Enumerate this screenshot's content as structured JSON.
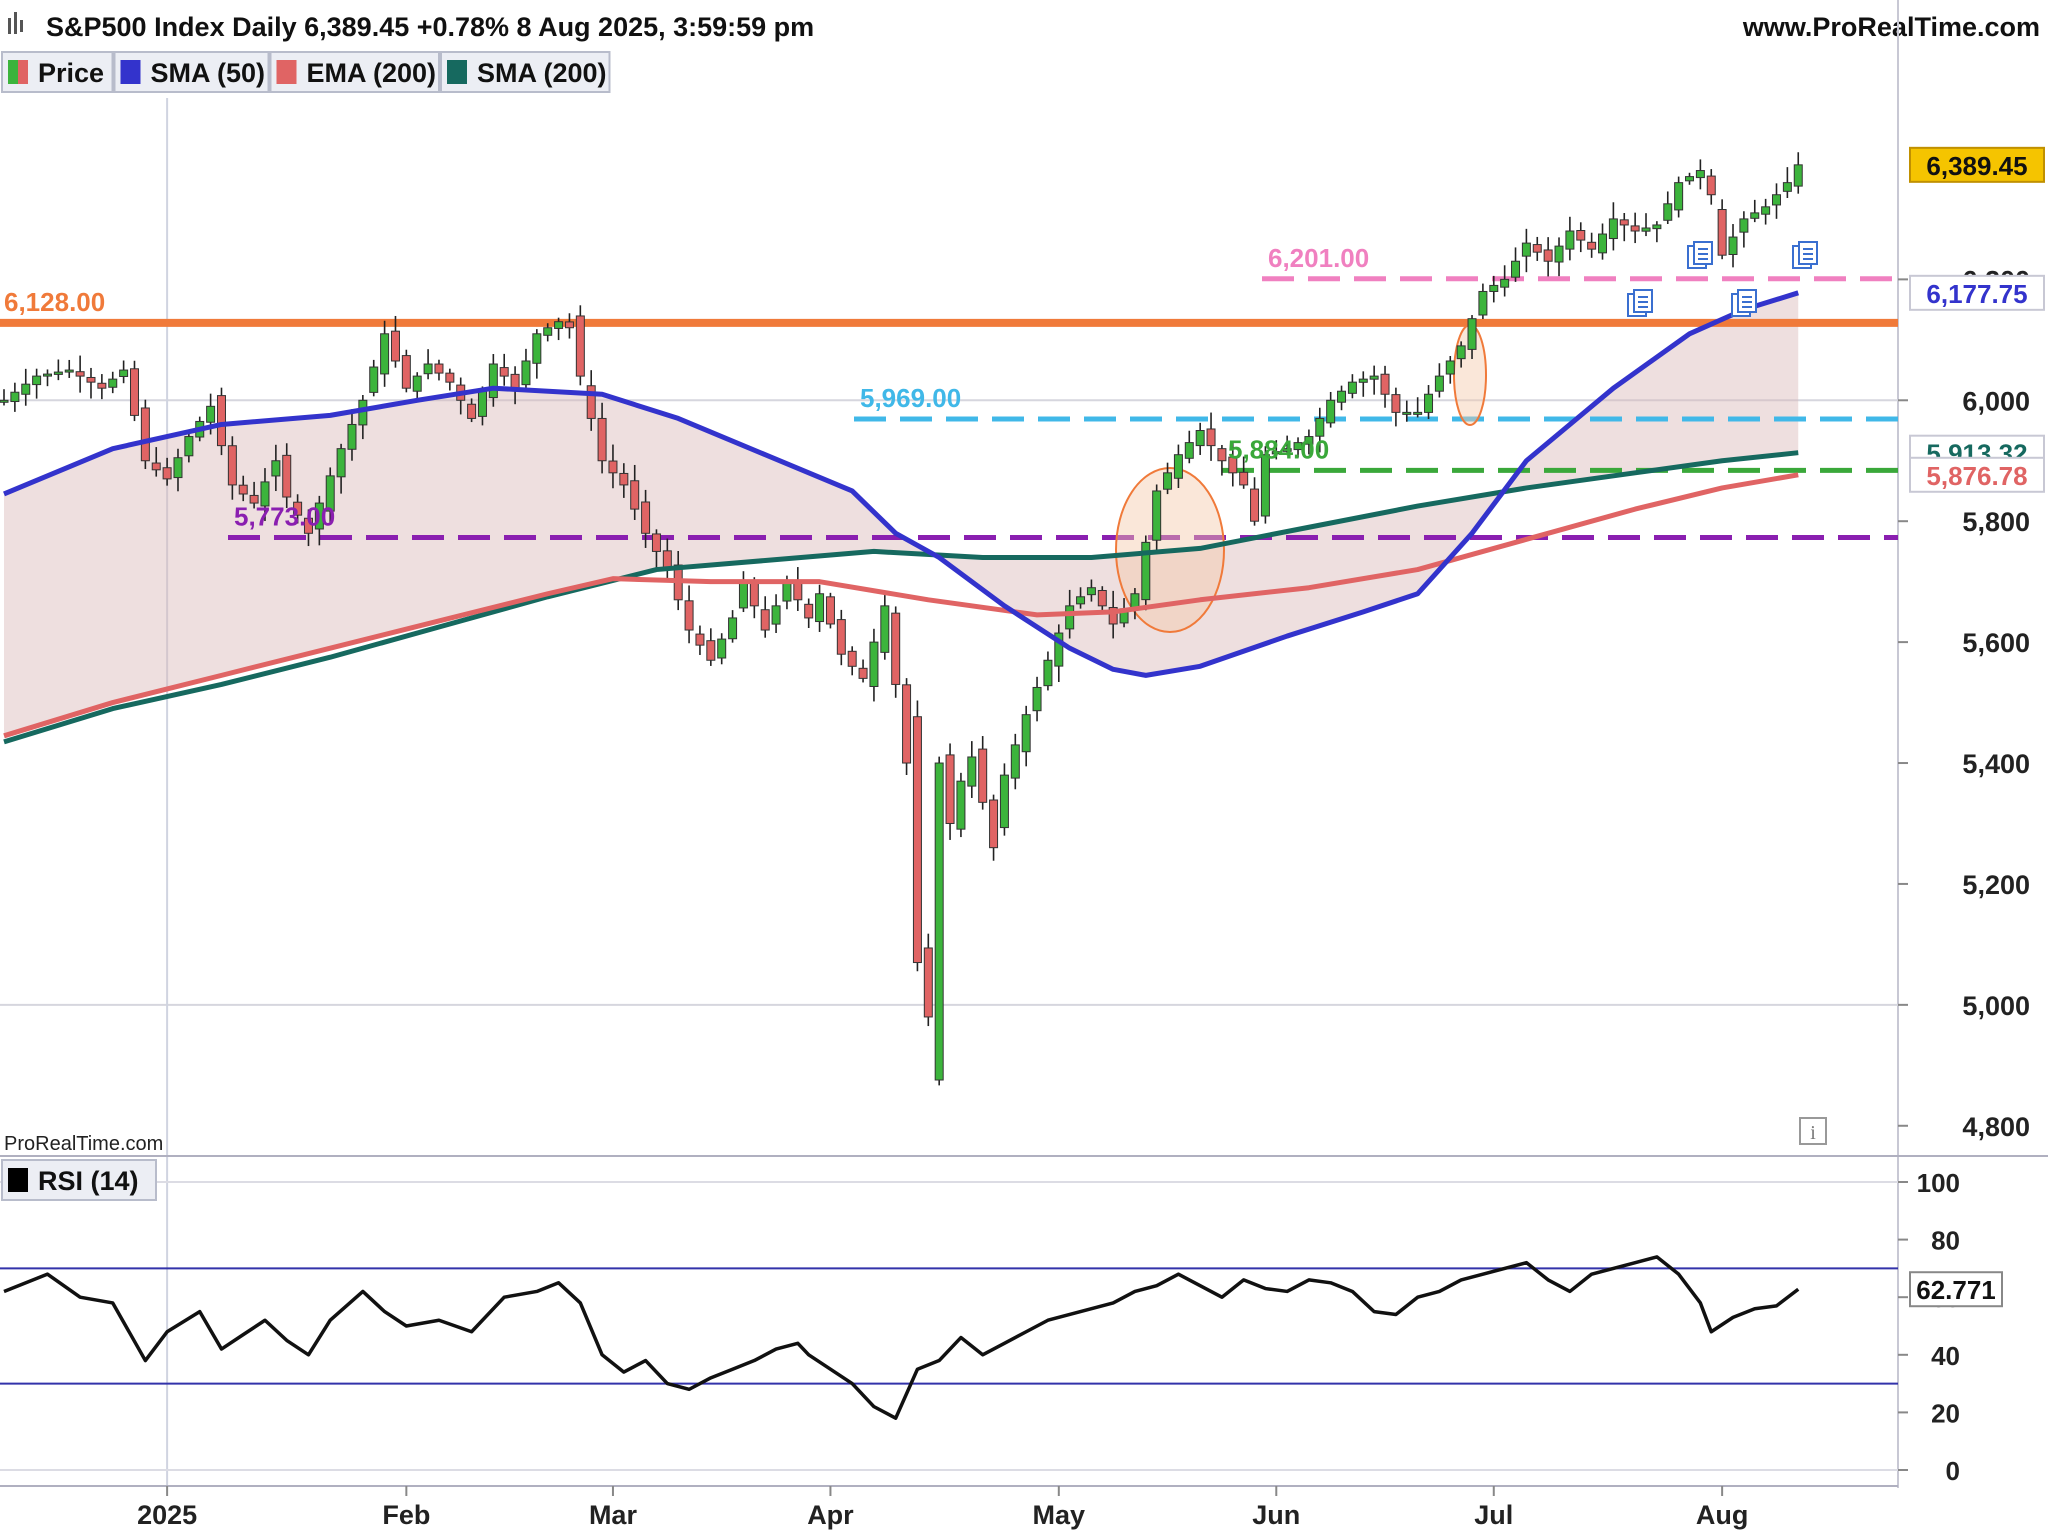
{
  "header": {
    "title": "S&P500 Index Daily 6,389.45 +0.78% 8 Aug 2025, 3:59:59 pm",
    "site": "www.ProRealTime.com",
    "watermark": "ProRealTime.com"
  },
  "legend": [
    {
      "label": "Price",
      "color": "#3cb43c",
      "color2": "#e06464",
      "icon": "price-swatch-icon"
    },
    {
      "label": "SMA (50)",
      "color": "#3333cc",
      "icon": "sma50-swatch-icon"
    },
    {
      "label": "EMA (200)",
      "color": "#e06464",
      "icon": "ema200-swatch-icon"
    },
    {
      "label": "SMA (200)",
      "color": "#16695f",
      "icon": "sma200-swatch-icon"
    }
  ],
  "rsi_legend": {
    "label": "RSI (14)",
    "color": "#000000",
    "icon": "rsi-swatch-icon"
  },
  "chart_data": {
    "type": "candlestick",
    "ylim": [
      4750,
      6500
    ],
    "y_ticks": [
      "4,800",
      "5,000",
      "5,200",
      "5,400",
      "5,600",
      "5,800",
      "6,000",
      "6,200"
    ],
    "y_tick_values": [
      4800,
      5000,
      5200,
      5400,
      5600,
      5800,
      6000,
      6200
    ],
    "x_ticks": [
      "2025",
      "Feb",
      "Mar",
      "Apr",
      "May",
      "Jun",
      "Jul",
      "Aug"
    ],
    "x_tick_days": [
      15,
      37,
      56,
      76,
      97,
      117,
      137,
      158
    ],
    "first_day": 0,
    "n_days": 168,
    "close_series": [
      [
        0,
        6000
      ],
      [
        3,
        6040
      ],
      [
        6,
        6050
      ],
      [
        9,
        6020
      ],
      [
        11,
        6050
      ],
      [
        13,
        5900
      ],
      [
        15,
        5870
      ],
      [
        17,
        5940
      ],
      [
        19,
        5990
      ],
      [
        21,
        5860
      ],
      [
        23,
        5830
      ],
      [
        25,
        5900
      ],
      [
        26,
        5840
      ],
      [
        28,
        5780
      ],
      [
        29,
        5830
      ],
      [
        31,
        5920
      ],
      [
        33,
        6000
      ],
      [
        35,
        6110
      ],
      [
        37,
        6020
      ],
      [
        39,
        6060
      ],
      [
        41,
        6030
      ],
      [
        43,
        5970
      ],
      [
        45,
        6060
      ],
      [
        47,
        6020
      ],
      [
        49,
        6110
      ],
      [
        51,
        6130
      ],
      [
        52,
        6120
      ],
      [
        53,
        6040
      ],
      [
        55,
        5900
      ],
      [
        57,
        5860
      ],
      [
        59,
        5780
      ],
      [
        61,
        5720
      ],
      [
        63,
        5620
      ],
      [
        65,
        5570
      ],
      [
        67,
        5640
      ],
      [
        68,
        5700
      ],
      [
        70,
        5620
      ],
      [
        72,
        5700
      ],
      [
        74,
        5640
      ],
      [
        75,
        5680
      ],
      [
        77,
        5580
      ],
      [
        79,
        5540
      ],
      [
        81,
        5660
      ],
      [
        83,
        5400
      ],
      [
        84,
        5070
      ],
      [
        85,
        4980
      ],
      [
        86,
        5400
      ],
      [
        87,
        5300
      ],
      [
        88,
        5370
      ],
      [
        89,
        5410
      ],
      [
        91,
        5260
      ],
      [
        92,
        5380
      ],
      [
        94,
        5480
      ],
      [
        96,
        5570
      ],
      [
        98,
        5660
      ],
      [
        100,
        5690
      ],
      [
        102,
        5630
      ],
      [
        104,
        5680
      ],
      [
        106,
        5850
      ],
      [
        108,
        5910
      ],
      [
        110,
        5950
      ],
      [
        112,
        5900
      ],
      [
        114,
        5860
      ],
      [
        115,
        5800
      ],
      [
        116,
        5910
      ],
      [
        118,
        5920
      ],
      [
        120,
        5940
      ],
      [
        122,
        6000
      ],
      [
        124,
        6030
      ],
      [
        126,
        6040
      ],
      [
        128,
        5980
      ],
      [
        130,
        5980
      ],
      [
        132,
        6040
      ],
      [
        134,
        6090
      ],
      [
        136,
        6180
      ],
      [
        138,
        6200
      ],
      [
        140,
        6260
      ],
      [
        142,
        6230
      ],
      [
        144,
        6280
      ],
      [
        146,
        6250
      ],
      [
        148,
        6300
      ],
      [
        150,
        6280
      ],
      [
        152,
        6290
      ],
      [
        154,
        6360
      ],
      [
        156,
        6380
      ],
      [
        157,
        6340
      ],
      [
        158,
        6240
      ],
      [
        160,
        6300
      ],
      [
        162,
        6320
      ],
      [
        164,
        6360
      ],
      [
        165,
        6389.45
      ]
    ],
    "series": [
      {
        "name": "SMA (50)",
        "color": "#3333cc",
        "last_label": "6,177.75",
        "points": [
          [
            0,
            5845
          ],
          [
            10,
            5920
          ],
          [
            20,
            5960
          ],
          [
            30,
            5975
          ],
          [
            38,
            6000
          ],
          [
            45,
            6020
          ],
          [
            55,
            6010
          ],
          [
            62,
            5970
          ],
          [
            70,
            5910
          ],
          [
            78,
            5850
          ],
          [
            82,
            5780
          ],
          [
            86,
            5740
          ],
          [
            92,
            5660
          ],
          [
            98,
            5590
          ],
          [
            102,
            5555
          ],
          [
            105,
            5545
          ],
          [
            110,
            5560
          ],
          [
            118,
            5610
          ],
          [
            125,
            5650
          ],
          [
            130,
            5680
          ],
          [
            135,
            5780
          ],
          [
            140,
            5900
          ],
          [
            148,
            6020
          ],
          [
            155,
            6110
          ],
          [
            160,
            6150
          ],
          [
            165,
            6177.75
          ]
        ]
      },
      {
        "name": "EMA (200)",
        "color": "#e06464",
        "last_label": "5,876.78",
        "points": [
          [
            0,
            5445
          ],
          [
            10,
            5500
          ],
          [
            20,
            5545
          ],
          [
            30,
            5590
          ],
          [
            40,
            5635
          ],
          [
            50,
            5680
          ],
          [
            56,
            5705
          ],
          [
            65,
            5700
          ],
          [
            75,
            5700
          ],
          [
            85,
            5670
          ],
          [
            95,
            5645
          ],
          [
            102,
            5650
          ],
          [
            110,
            5670
          ],
          [
            120,
            5690
          ],
          [
            130,
            5720
          ],
          [
            140,
            5770
          ],
          [
            150,
            5820
          ],
          [
            158,
            5855
          ],
          [
            165,
            5876.78
          ]
        ]
      },
      {
        "name": "SMA (200)",
        "color": "#16695f",
        "last_label": "5,913.32",
        "points": [
          [
            0,
            5435
          ],
          [
            10,
            5490
          ],
          [
            20,
            5530
          ],
          [
            30,
            5575
          ],
          [
            40,
            5625
          ],
          [
            50,
            5675
          ],
          [
            60,
            5720
          ],
          [
            70,
            5735
          ],
          [
            80,
            5750
          ],
          [
            90,
            5740
          ],
          [
            100,
            5740
          ],
          [
            110,
            5755
          ],
          [
            120,
            5790
          ],
          [
            130,
            5825
          ],
          [
            140,
            5855
          ],
          [
            150,
            5880
          ],
          [
            158,
            5900
          ],
          [
            165,
            5913.32
          ]
        ]
      }
    ],
    "levels": [
      {
        "label": "6,128.00",
        "value": 6128,
        "color": "#f07a3a",
        "style": "solid"
      },
      {
        "label": "6,201.00",
        "value": 6201,
        "color": "#f080c0",
        "style": "dashed"
      },
      {
        "label": "5,969.00",
        "value": 5969,
        "color": "#40b8e8",
        "style": "dashed"
      },
      {
        "label": "5,884.00",
        "value": 5884,
        "color": "#3aa83a",
        "style": "dashed"
      },
      {
        "label": "5,773.00",
        "value": 5773,
        "color": "#8a1fb0",
        "style": "dashed"
      }
    ],
    "last_price_label": "6,389.45",
    "rsi": {
      "ylim": [
        0,
        100
      ],
      "ticks": [
        "0",
        "20",
        "40",
        "60",
        "80",
        "100"
      ],
      "tick_values": [
        0,
        20,
        40,
        60,
        80,
        100
      ],
      "overbought": 70,
      "oversold": 30,
      "last_label": "62.771",
      "points": [
        [
          0,
          62
        ],
        [
          4,
          68
        ],
        [
          7,
          60
        ],
        [
          10,
          58
        ],
        [
          13,
          38
        ],
        [
          15,
          48
        ],
        [
          18,
          55
        ],
        [
          20,
          42
        ],
        [
          22,
          47
        ],
        [
          24,
          52
        ],
        [
          26,
          45
        ],
        [
          28,
          40
        ],
        [
          30,
          52
        ],
        [
          33,
          62
        ],
        [
          35,
          55
        ],
        [
          37,
          50
        ],
        [
          40,
          52
        ],
        [
          43,
          48
        ],
        [
          46,
          60
        ],
        [
          49,
          62
        ],
        [
          51,
          65
        ],
        [
          53,
          58
        ],
        [
          55,
          40
        ],
        [
          57,
          34
        ],
        [
          59,
          38
        ],
        [
          61,
          30
        ],
        [
          63,
          28
        ],
        [
          65,
          32
        ],
        [
          67,
          35
        ],
        [
          69,
          38
        ],
        [
          71,
          42
        ],
        [
          73,
          44
        ],
        [
          74,
          40
        ],
        [
          76,
          35
        ],
        [
          78,
          30
        ],
        [
          80,
          22
        ],
        [
          82,
          18
        ],
        [
          84,
          35
        ],
        [
          86,
          38
        ],
        [
          88,
          46
        ],
        [
          90,
          40
        ],
        [
          92,
          44
        ],
        [
          94,
          48
        ],
        [
          96,
          52
        ],
        [
          98,
          54
        ],
        [
          100,
          56
        ],
        [
          102,
          58
        ],
        [
          104,
          62
        ],
        [
          106,
          64
        ],
        [
          108,
          68
        ],
        [
          110,
          64
        ],
        [
          112,
          60
        ],
        [
          114,
          66
        ],
        [
          116,
          63
        ],
        [
          118,
          62
        ],
        [
          120,
          66
        ],
        [
          122,
          65
        ],
        [
          124,
          62
        ],
        [
          126,
          55
        ],
        [
          128,
          54
        ],
        [
          130,
          60
        ],
        [
          132,
          62
        ],
        [
          134,
          66
        ],
        [
          136,
          68
        ],
        [
          138,
          70
        ],
        [
          140,
          72
        ],
        [
          142,
          66
        ],
        [
          144,
          62
        ],
        [
          146,
          68
        ],
        [
          148,
          70
        ],
        [
          150,
          72
        ],
        [
          152,
          74
        ],
        [
          154,
          68
        ],
        [
          156,
          58
        ],
        [
          157,
          48
        ],
        [
          159,
          53
        ],
        [
          161,
          56
        ],
        [
          163,
          57
        ],
        [
          165,
          62.771
        ]
      ]
    }
  }
}
